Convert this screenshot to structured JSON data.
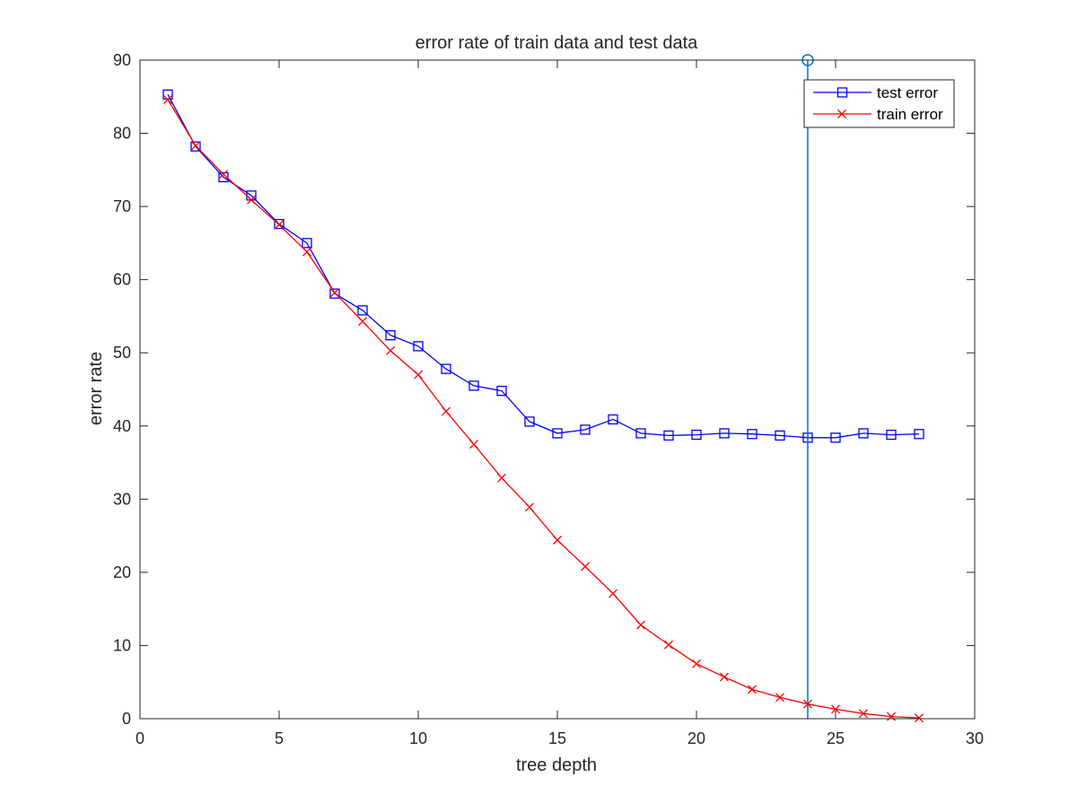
{
  "chart_data": {
    "type": "line",
    "title": "error rate of train data and test data",
    "xlabel": "tree depth",
    "ylabel": "error rate",
    "xlim": [
      0,
      30
    ],
    "ylim": [
      0,
      90
    ],
    "xticks": [
      0,
      5,
      10,
      15,
      20,
      25,
      30
    ],
    "yticks": [
      0,
      10,
      20,
      30,
      40,
      50,
      60,
      70,
      80,
      90
    ],
    "grid": false,
    "legend_position": "top-right",
    "x": [
      1,
      2,
      3,
      4,
      5,
      6,
      7,
      8,
      9,
      10,
      11,
      12,
      13,
      14,
      15,
      16,
      17,
      18,
      19,
      20,
      21,
      22,
      23,
      24,
      25,
      26,
      27,
      28
    ],
    "series": [
      {
        "name": "test error",
        "color": "#0000ff",
        "marker": "square",
        "values": [
          85.3,
          78.2,
          74.0,
          71.5,
          67.6,
          65.0,
          58.1,
          55.8,
          52.4,
          50.9,
          47.8,
          45.5,
          44.8,
          40.6,
          39.0,
          39.5,
          40.9,
          39.0,
          38.7,
          38.8,
          39.0,
          38.9,
          38.7,
          38.4,
          38.4,
          39.0,
          38.8,
          38.9
        ]
      },
      {
        "name": "train error",
        "color": "#ff0000",
        "marker": "x",
        "values": [
          84.6,
          78.3,
          74.4,
          70.9,
          67.5,
          63.8,
          58.2,
          54.3,
          50.3,
          47.0,
          42.0,
          37.5,
          32.9,
          28.9,
          24.4,
          20.8,
          17.1,
          12.8,
          10.1,
          7.5,
          5.7,
          4.0,
          2.9,
          2.0,
          1.3,
          0.7,
          0.3,
          0.1
        ]
      }
    ],
    "marker_line": {
      "x": 24,
      "y_from": 0,
      "y_to": 90,
      "color": "#0072bd",
      "marker": "circle"
    }
  }
}
